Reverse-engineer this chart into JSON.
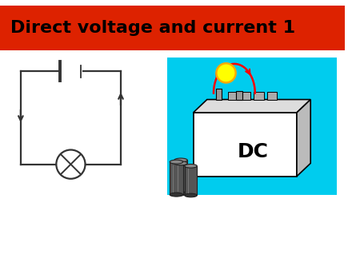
{
  "title": "Direct voltage and current 1",
  "title_bg_color": "#DD2200",
  "title_text_color": "#000000",
  "bg_color": "#FFFFFF",
  "circuit_color": "#333333",
  "cyan_box_color": "#00CCEE",
  "dc_text": "DC",
  "xl": 0,
  "xr": 10,
  "yb": 0,
  "yt": 7.5
}
